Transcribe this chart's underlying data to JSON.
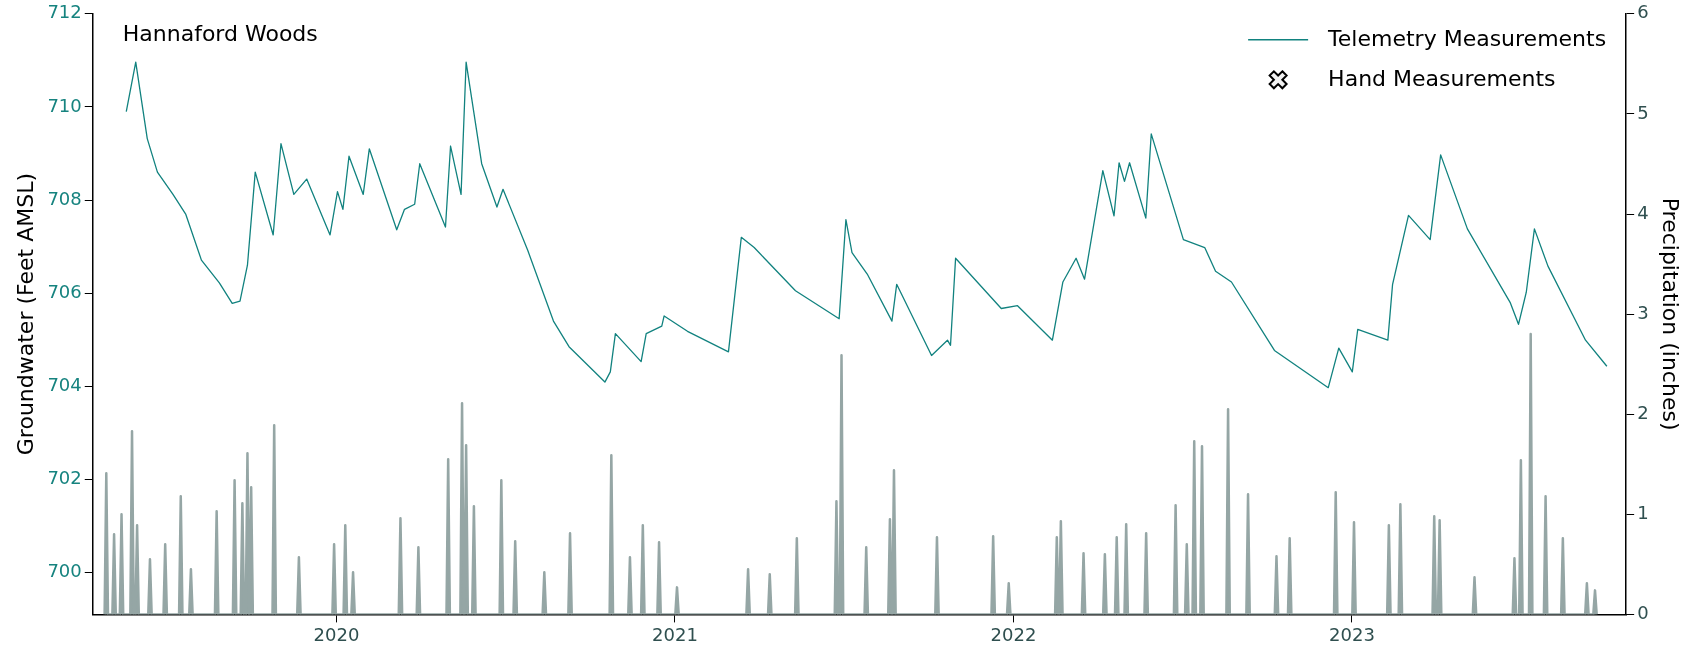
{
  "chart_data": {
    "type": "line",
    "ylabel": "Groundwater (Feet AMSL)",
    "y2label": "Precipitation (inches)",
    "annotations": [
      "Hannaford Woods"
    ],
    "xlim": [
      2019.28,
      2023.81
    ],
    "xticks": [
      2020,
      2021,
      2022,
      2023
    ],
    "ylim": [
      699.1,
      712
    ],
    "yticks": [
      700,
      702,
      704,
      706,
      708,
      710,
      712
    ],
    "y2lim": [
      0,
      6
    ],
    "y2ticks": [
      0,
      1,
      2,
      3,
      4,
      5,
      6
    ],
    "grid": false,
    "legend": "top right",
    "series": [
      {
        "name": "Telemetry Measurements",
        "color": "#11827f",
        "x": [
          2019.379,
          2019.407,
          2019.441,
          2019.471,
          2019.517,
          2019.555,
          2019.601,
          2019.654,
          2019.692,
          2019.715,
          2019.737,
          2019.76,
          2019.813,
          2019.836,
          2019.874,
          2019.912,
          2019.981,
          2020.003,
          2020.019,
          2020.037,
          2020.079,
          2020.097,
          2020.178,
          2020.201,
          2020.231,
          2020.246,
          2020.322,
          2020.337,
          2020.368,
          2020.383,
          2020.429,
          2020.474,
          2020.492,
          2020.565,
          2020.641,
          2020.687,
          2020.793,
          2020.809,
          2020.824,
          2020.9,
          2020.915,
          2020.961,
          2020.968,
          2021.037,
          2021.158,
          2021.196,
          2021.234,
          2021.356,
          2021.485,
          2021.505,
          2021.523,
          2021.568,
          2021.641,
          2021.655,
          2021.758,
          2021.805,
          2021.814,
          2021.829,
          2021.964,
          2022.012,
          2022.115,
          2022.146,
          2022.185,
          2022.21,
          2022.264,
          2022.297,
          2022.312,
          2022.328,
          2022.343,
          2022.391,
          2022.407,
          2022.502,
          2022.565,
          2022.597,
          2022.644,
          2022.771,
          2022.93,
          2022.961,
          2023.001,
          2023.017,
          2023.106,
          2023.12,
          2023.167,
          2023.231,
          2023.262,
          2023.341,
          2023.468,
          2023.492,
          2023.515,
          2023.539,
          2023.579,
          2023.69,
          2023.753
        ],
        "values": [
          709.9,
          710.96,
          709.32,
          708.6,
          708.12,
          707.69,
          706.71,
          706.22,
          705.78,
          705.83,
          706.6,
          708.6,
          707.25,
          709.21,
          708.12,
          708.45,
          707.25,
          708.18,
          707.8,
          708.94,
          708.12,
          709.1,
          707.36,
          707.8,
          707.91,
          708.78,
          707.42,
          709.16,
          708.12,
          710.96,
          708.78,
          707.85,
          708.23,
          706.92,
          705.4,
          704.85,
          704.09,
          704.31,
          705.13,
          704.53,
          705.13,
          705.29,
          705.51,
          705.18,
          704.74,
          707.2,
          706.98,
          706.05,
          705.45,
          707.58,
          706.87,
          706.41,
          705.4,
          706.19,
          704.66,
          704.99,
          704.88,
          706.75,
          705.67,
          705.73,
          704.99,
          706.24,
          706.75,
          706.3,
          708.63,
          707.66,
          708.8,
          708.4,
          708.8,
          707.61,
          709.42,
          707.15,
          706.98,
          706.47,
          706.24,
          704.77,
          703.97,
          704.82,
          704.31,
          705.22,
          704.99,
          706.19,
          707.67,
          707.15,
          708.97,
          707.38,
          705.79,
          705.33,
          706.02,
          707.38,
          706.58,
          704.99,
          704.43
        ]
      },
      {
        "type": "area",
        "axis": "y2",
        "color": "#95a6a5",
        "x": [
          2019.315,
          2019.32,
          2019.325,
          2019.338,
          2019.343,
          2019.348,
          2019.36,
          2019.365,
          2019.37,
          2019.391,
          2019.396,
          2019.401,
          2019.406,
          2019.411,
          2019.416,
          2019.444,
          2019.449,
          2019.454,
          2019.489,
          2019.494,
          2019.499,
          2019.535,
          2019.54,
          2019.545,
          2019.565,
          2019.57,
          2019.575,
          2019.641,
          2019.646,
          2019.651,
          2019.694,
          2019.699,
          2019.704,
          2019.717,
          2019.722,
          2019.727,
          2019.732,
          2019.737,
          2019.742,
          2019.743,
          2019.748,
          2019.753,
          2019.811,
          2019.816,
          2019.821,
          2019.884,
          2019.889,
          2019.894,
          2019.988,
          2019.993,
          2019.998,
          2020.021,
          2020.026,
          2020.031,
          2020.044,
          2020.049,
          2020.054,
          2020.184,
          2020.189,
          2020.194,
          2020.237,
          2020.242,
          2020.247,
          2020.325,
          2020.33,
          2020.335,
          2020.366,
          2020.371,
          2020.376,
          2020.378,
          2020.383,
          2020.388,
          2020.401,
          2020.406,
          2020.411,
          2020.482,
          2020.487,
          2020.492,
          2020.523,
          2020.528,
          2020.533,
          2020.609,
          2020.614,
          2020.619,
          2020.685,
          2020.69,
          2020.695,
          2020.807,
          2020.812,
          2020.817,
          2020.862,
          2020.867,
          2020.872,
          2020.9,
          2020.905,
          2020.91,
          2020.948,
          2020.953,
          2020.958,
          2021.001,
          2021.006,
          2021.011,
          2021.211,
          2021.216,
          2021.221,
          2021.275,
          2021.28,
          2021.285,
          2021.355,
          2021.36,
          2021.365,
          2021.472,
          2021.477,
          2021.482,
          2021.487,
          2021.492,
          2021.497,
          2021.56,
          2021.565,
          2021.57,
          2021.63,
          2021.635,
          2021.64,
          2021.642,
          2021.647,
          2021.652,
          2021.769,
          2021.774,
          2021.779,
          2021.935,
          2021.94,
          2021.945,
          2021.981,
          2021.986,
          2021.991,
          2022.123,
          2022.128,
          2022.133,
          2022.135,
          2022.14,
          2022.145,
          2022.202,
          2022.207,
          2022.212,
          2022.265,
          2022.27,
          2022.275,
          2022.3,
          2022.305,
          2022.31,
          2022.328,
          2022.333,
          2022.338,
          2022.387,
          2022.392,
          2022.397,
          2022.474,
          2022.479,
          2022.484,
          2022.507,
          2022.512,
          2022.517,
          2022.529,
          2022.534,
          2022.539,
          2022.552,
          2022.557,
          2022.562,
          2022.629,
          2022.634,
          2022.639,
          2022.688,
          2022.693,
          2022.698,
          2022.772,
          2022.777,
          2022.782,
          2022.811,
          2022.816,
          2022.821,
          2022.947,
          2022.952,
          2022.957,
          2023.001,
          2023.006,
          2023.011,
          2023.104,
          2023.109,
          2023.114,
          2023.138,
          2023.143,
          2023.148,
          2023.238,
          2023.243,
          2023.248,
          2023.254,
          2023.259,
          2023.264,
          2023.357,
          2023.362,
          2023.367,
          2023.475,
          2023.48,
          2023.485,
          2023.494,
          2023.499,
          2023.504,
          2023.523,
          2023.528,
          2023.533,
          2023.567,
          2023.572,
          2023.577,
          2023.618,
          2023.623,
          2023.628,
          2023.689,
          2023.694,
          2023.699,
          2023.713,
          2023.718,
          2023.723
        ],
        "values": [
          0,
          1.41,
          0,
          0,
          0.8,
          0,
          0,
          1.0,
          0,
          0,
          1.83,
          0,
          0,
          0.89,
          0,
          0,
          0.55,
          0,
          0,
          0.7,
          0,
          0,
          1.18,
          0,
          0,
          0.45,
          0,
          0,
          1.03,
          0,
          0,
          1.34,
          0,
          0,
          1.11,
          0,
          0,
          1.61,
          0,
          0,
          1.27,
          0,
          0,
          1.89,
          0,
          0,
          0.57,
          0,
          0,
          0.7,
          0,
          0,
          0.89,
          0,
          0,
          0.42,
          0,
          0,
          0.96,
          0,
          0,
          0.67,
          0,
          0,
          1.55,
          0,
          0,
          2.11,
          0,
          0,
          1.69,
          0,
          0,
          1.08,
          0,
          0,
          1.34,
          0,
          0,
          0.73,
          0,
          0,
          0.42,
          0,
          0,
          0.81,
          0,
          0,
          1.59,
          0,
          0,
          0.57,
          0,
          0,
          0.89,
          0,
          0,
          0.72,
          0,
          0,
          0.27,
          0,
          0,
          0.45,
          0,
          0,
          0.4,
          0,
          0,
          0.76,
          0,
          0,
          1.13,
          0,
          0,
          2.59,
          0,
          0,
          0.67,
          0,
          0,
          0.95,
          0,
          0,
          1.44,
          0,
          0,
          0.77,
          0,
          0,
          0.78,
          0,
          0,
          0.31,
          0,
          0,
          0.77,
          0,
          0,
          0.93,
          0,
          0,
          0.61,
          0,
          0,
          0.6,
          0,
          0,
          0.77,
          0,
          0,
          0.9,
          0,
          0,
          0.81,
          0,
          0,
          1.09,
          0,
          0,
          0.7,
          0,
          0,
          1.73,
          0,
          0,
          1.68,
          0,
          0,
          2.05,
          0,
          0,
          1.2,
          0,
          0,
          0.58,
          0,
          0,
          0.76,
          0,
          0,
          1.22,
          0,
          0,
          0.92,
          0,
          0,
          0.89,
          0,
          0,
          1.1,
          0,
          0,
          0.98,
          0,
          0,
          0.94,
          0,
          0,
          0.37,
          0,
          0,
          0.56,
          0,
          0,
          1.54,
          0,
          0,
          2.8,
          0,
          0,
          1.18,
          0,
          0,
          0.76,
          0,
          0,
          0.31,
          0,
          0,
          0.24,
          0
        ]
      },
      {
        "name": "Hand Measurements",
        "type": "scatter",
        "marker": "cross",
        "color": "#000000"
      }
    ]
  }
}
